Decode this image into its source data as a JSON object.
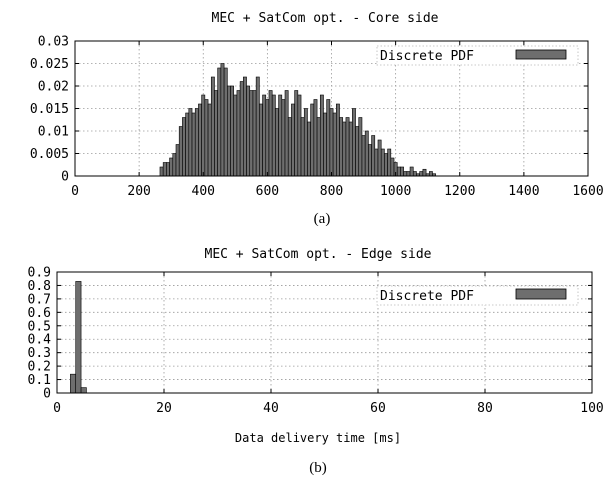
{
  "chart_data": [
    {
      "type": "bar",
      "title": "MEC + SatCom opt. - Core side",
      "caption": "(a)",
      "xlabel": "",
      "legend": "Discrete PDF",
      "legend_position": "top-right",
      "grid": true,
      "xlim": [
        0,
        1600
      ],
      "ylim": [
        0,
        0.03
      ],
      "xticks": [
        "0",
        "200",
        "400",
        "600",
        "800",
        "1000",
        "1200",
        "1400",
        "1600"
      ],
      "yticks": [
        "0",
        "0.005",
        "0.01",
        "0.015",
        "0.02",
        "0.025",
        "0.03"
      ],
      "bin_width": 10,
      "x": [
        270,
        280,
        290,
        300,
        310,
        320,
        330,
        340,
        350,
        360,
        370,
        380,
        390,
        400,
        410,
        420,
        430,
        440,
        450,
        460,
        470,
        480,
        490,
        500,
        510,
        520,
        530,
        540,
        550,
        560,
        570,
        580,
        590,
        600,
        610,
        620,
        630,
        640,
        650,
        660,
        670,
        680,
        690,
        700,
        710,
        720,
        730,
        740,
        750,
        760,
        770,
        780,
        790,
        800,
        810,
        820,
        830,
        840,
        850,
        860,
        870,
        880,
        890,
        900,
        910,
        920,
        930,
        940,
        950,
        960,
        970,
        980,
        990,
        1000,
        1010,
        1020,
        1030,
        1040,
        1050,
        1060,
        1070,
        1080,
        1090,
        1100,
        1110,
        1120
      ],
      "values": [
        0.002,
        0.003,
        0.003,
        0.004,
        0.005,
        0.007,
        0.011,
        0.013,
        0.014,
        0.015,
        0.014,
        0.015,
        0.016,
        0.018,
        0.017,
        0.016,
        0.022,
        0.019,
        0.024,
        0.025,
        0.024,
        0.02,
        0.02,
        0.018,
        0.019,
        0.021,
        0.022,
        0.02,
        0.019,
        0.019,
        0.022,
        0.016,
        0.018,
        0.017,
        0.019,
        0.018,
        0.015,
        0.018,
        0.017,
        0.019,
        0.013,
        0.016,
        0.019,
        0.018,
        0.013,
        0.015,
        0.012,
        0.016,
        0.017,
        0.013,
        0.018,
        0.014,
        0.017,
        0.015,
        0.014,
        0.016,
        0.013,
        0.012,
        0.013,
        0.012,
        0.015,
        0.011,
        0.013,
        0.009,
        0.01,
        0.007,
        0.009,
        0.006,
        0.008,
        0.006,
        0.005,
        0.006,
        0.004,
        0.003,
        0.002,
        0.002,
        0.001,
        0.001,
        0.002,
        0.001,
        0.0005,
        0.001,
        0.0015,
        0.0005,
        0.001,
        0.0005
      ]
    },
    {
      "type": "bar",
      "title": "MEC + SatCom opt. - Edge side",
      "caption": "(b)",
      "xlabel": "Data delivery time [ms]",
      "legend": "Discrete PDF",
      "legend_position": "top-right",
      "grid": true,
      "xlim": [
        0,
        100
      ],
      "ylim": [
        0,
        0.9
      ],
      "xticks": [
        "0",
        "20",
        "40",
        "60",
        "80",
        "100"
      ],
      "yticks": [
        "0",
        "0.1",
        "0.2",
        "0.3",
        "0.4",
        "0.5",
        "0.6",
        "0.7",
        "0.8",
        "0.9"
      ],
      "bin_width": 1,
      "x": [
        3,
        4,
        5
      ],
      "values": [
        0.14,
        0.83,
        0.04
      ]
    }
  ]
}
